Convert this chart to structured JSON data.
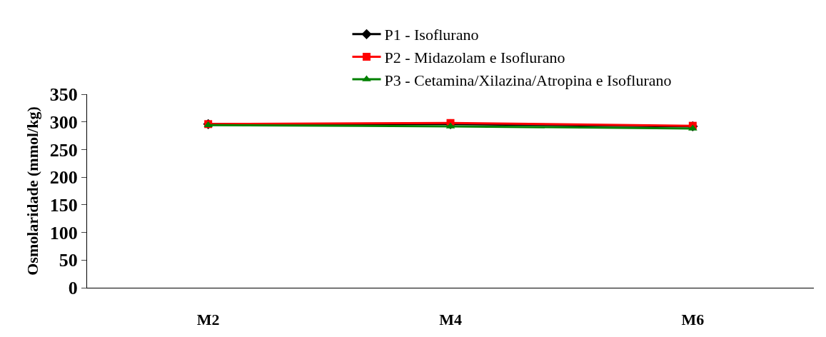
{
  "chart_data": {
    "type": "line",
    "ylabel": "Osmolaridade (mmol/kg)",
    "categories": [
      "M2",
      "M4",
      "M6"
    ],
    "series": [
      {
        "name": "P1 - Isoflurano",
        "color": "#000000",
        "marker": "diamond",
        "values": [
          296,
          296,
          292
        ]
      },
      {
        "name": "P2 - Midazolam e Isoflurano",
        "color": "#ff0000",
        "marker": "square",
        "values": [
          296,
          298,
          293
        ]
      },
      {
        "name": "P3 - Cetamina/Xilazina/Atropina e Isoflurano",
        "color": "#008000",
        "marker": "triangle",
        "values": [
          294,
          292,
          288
        ]
      }
    ],
    "ylim": [
      0,
      350
    ],
    "yticks": [
      0,
      50,
      100,
      150,
      200,
      250,
      300,
      350
    ],
    "grid": false,
    "legend": "top",
    "line_style": "solid"
  }
}
